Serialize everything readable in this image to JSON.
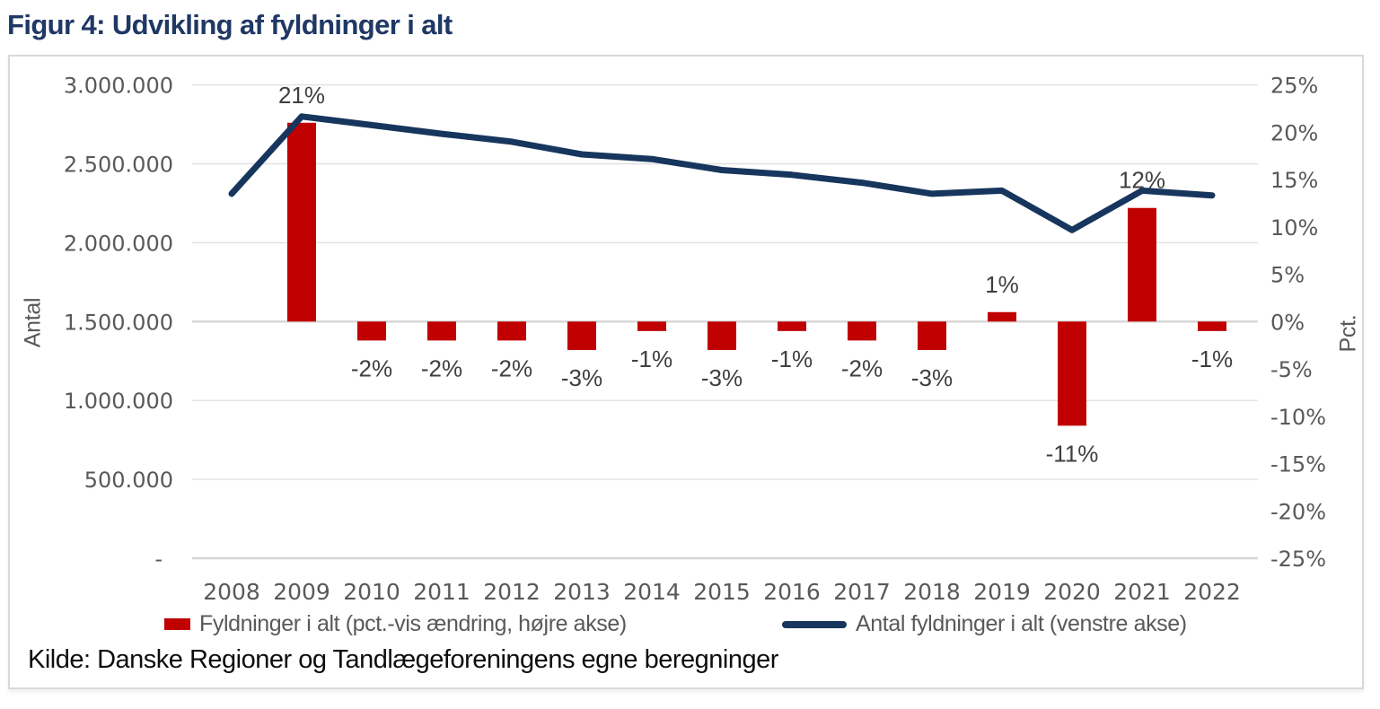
{
  "title": "Figur 4: Udvikling af fyldninger i alt",
  "source": "Kilde: Danske Regioner og Tandlægeforeningens egne beregninger",
  "colors": {
    "bar": "#C00000",
    "line": "#17365D",
    "title": "#1F3864",
    "axis_text": "#595959",
    "data_label_text": "#3F3F3F",
    "gridline": "#E0E0E0",
    "axis_line": "#D6D6D6",
    "border": "#D9D9D9"
  },
  "legend": [
    {
      "label": "Fyldninger i alt (pct.-vis ændring, højre akse)",
      "swatch": "bar-swatch"
    },
    {
      "label": "Antal fyldninger i alt (venstre akse)",
      "swatch": "line-swatch"
    }
  ],
  "chart_data": {
    "type": "combo",
    "title": "Figur 4: Udvikling af fyldninger i alt",
    "categories": [
      "2008",
      "2009",
      "2010",
      "2011",
      "2012",
      "2013",
      "2014",
      "2015",
      "2016",
      "2017",
      "2018",
      "2019",
      "2020",
      "2021",
      "2022"
    ],
    "series": [
      {
        "name": "Fyldninger i alt (pct.-vis ændring, højre akse)",
        "type": "bar",
        "axis": "right",
        "unit": "%",
        "values": [
          null,
          21,
          -2,
          -2,
          -2,
          -3,
          -1,
          -3,
          -1,
          -2,
          -3,
          1,
          -11,
          12,
          -1
        ],
        "labels": [
          "",
          "21%",
          "-2%",
          "-2%",
          "-2%",
          "-3%",
          "-1%",
          "-3%",
          "-1%",
          "-2%",
          "-3%",
          "1%",
          "-11%",
          "12%",
          "-1%"
        ]
      },
      {
        "name": "Antal fyldninger i alt (venstre akse)",
        "type": "line",
        "axis": "left",
        "values": [
          2310000,
          2800000,
          2745000,
          2690000,
          2640000,
          2560000,
          2530000,
          2460000,
          2430000,
          2380000,
          2310000,
          2330000,
          2080000,
          2330000,
          2300000
        ]
      }
    ],
    "left_axis": {
      "label": "Antal",
      "min": 0,
      "max": 3000000,
      "ticks": [
        "3.000.000",
        "2.500.000",
        "2.000.000",
        "1.500.000",
        "1.000.000",
        "500.000",
        "-"
      ]
    },
    "right_axis": {
      "label": "Pct.",
      "min": -25,
      "max": 25,
      "ticks": [
        "25%",
        "20%",
        "15%",
        "10%",
        "5%",
        "0%",
        "-5%",
        "-10%",
        "-15%",
        "-20%",
        "-25%"
      ]
    },
    "grid": true,
    "legend_position": "bottom"
  }
}
